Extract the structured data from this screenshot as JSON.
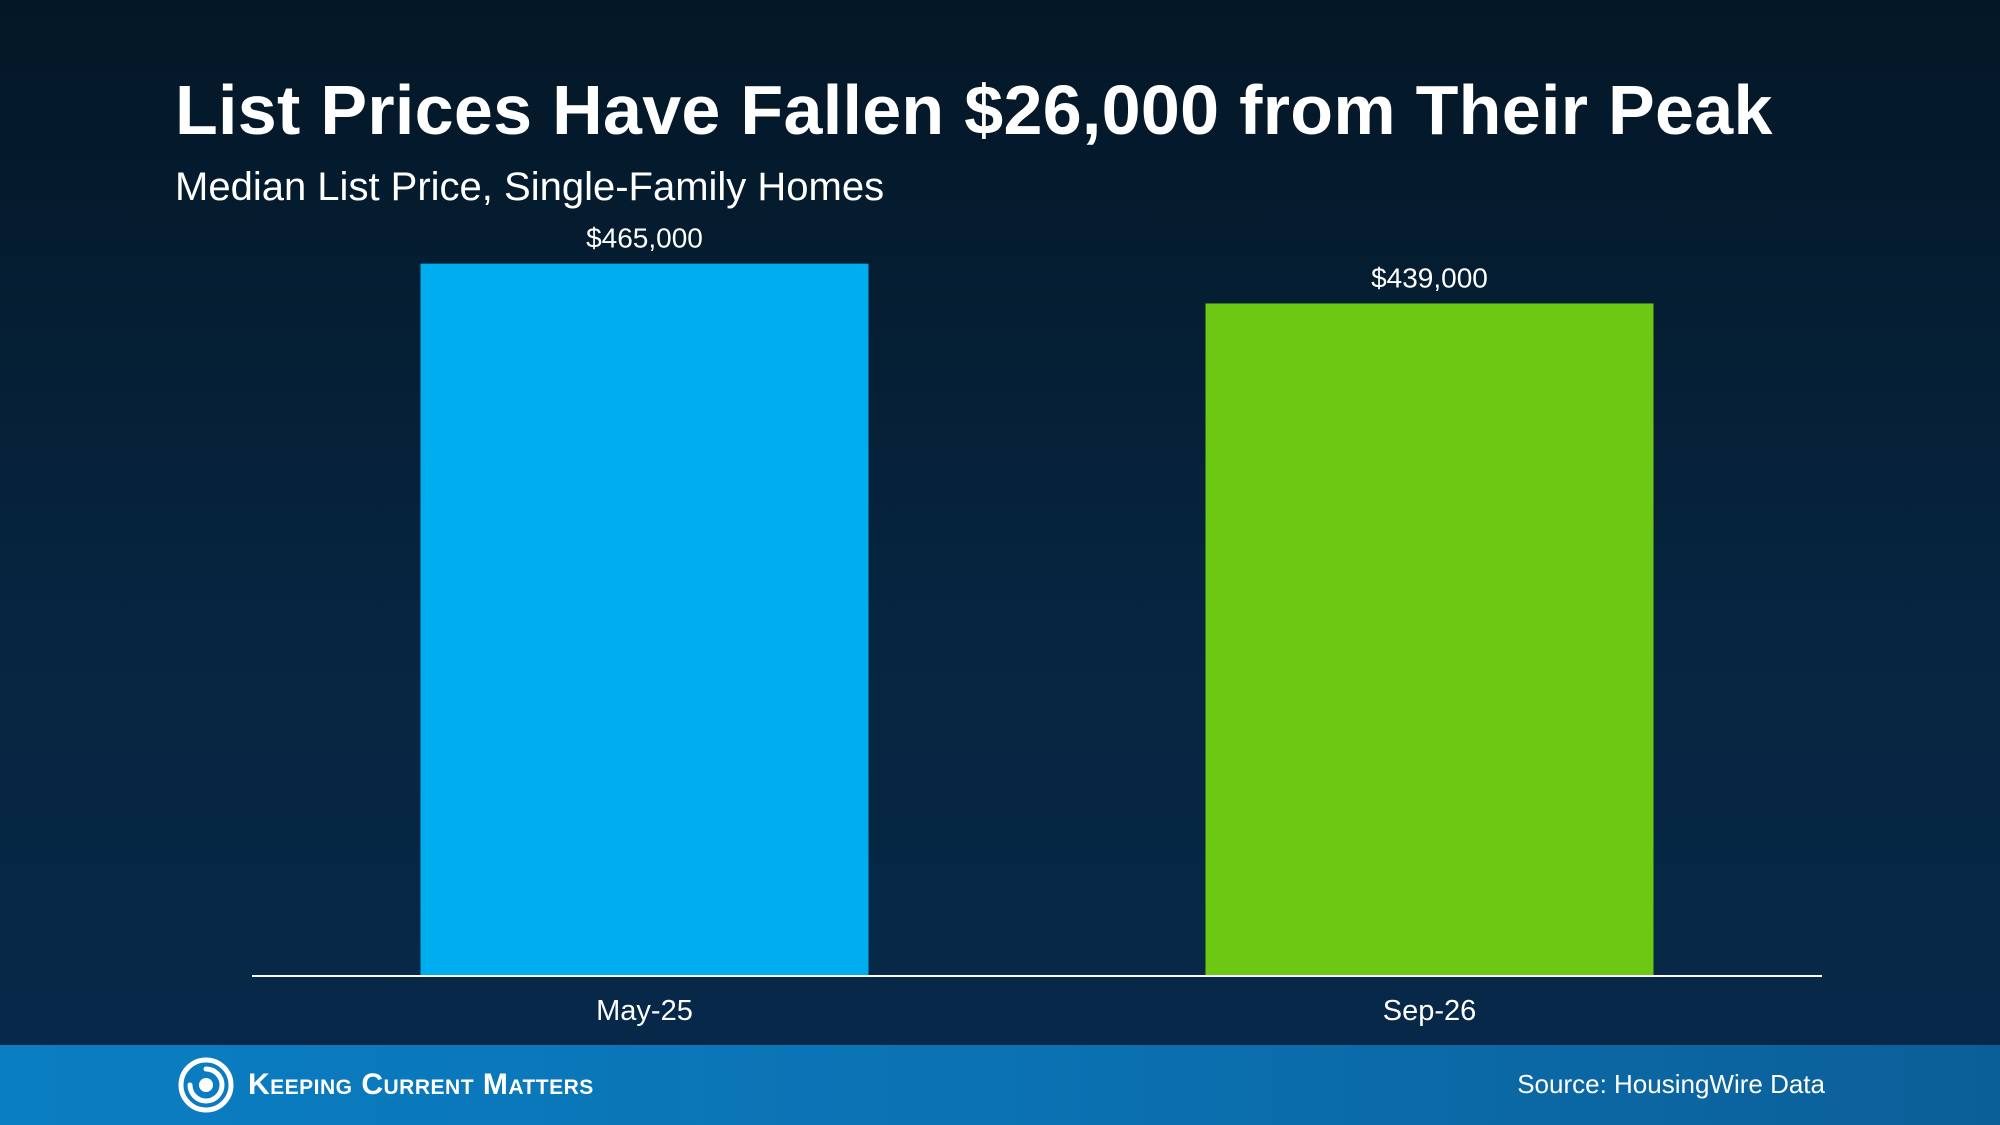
{
  "header": {
    "title": "List Prices Have Fallen $26,000 from Their Peak",
    "subtitle": "Median List Price, Single-Family Homes"
  },
  "chart_data": {
    "type": "bar",
    "categories": [
      "May-25",
      "Sep-26"
    ],
    "values": [
      465000,
      439000
    ],
    "data_labels": [
      "$465,000",
      "$439,000"
    ],
    "colors": [
      "#00adee",
      "#6cc812"
    ],
    "ylim": [
      0,
      500000
    ],
    "grid": false,
    "legend": "none"
  },
  "footer": {
    "logo_text": "Keeping Current Matters",
    "source": "Source: HousingWire Data"
  },
  "colors": {
    "background": "#062540",
    "footer": "#0b72b3",
    "axis": "#ffffff"
  },
  "icons": {
    "logo": "swirl-logo-icon"
  }
}
